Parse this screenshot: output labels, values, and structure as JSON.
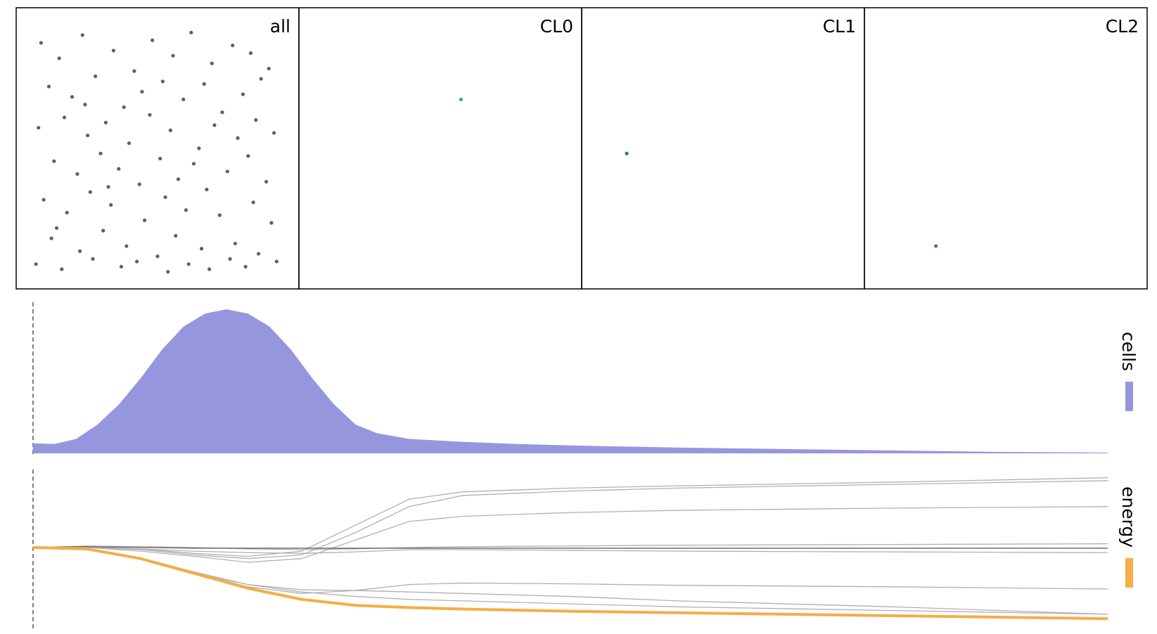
{
  "chart_data": [
    {
      "type": "scatter",
      "title": "all",
      "color": "#606060",
      "xlim": [
        0,
        1
      ],
      "ylim": [
        0,
        1
      ],
      "x": [
        0.05,
        0.12,
        0.21,
        0.33,
        0.41,
        0.48,
        0.56,
        0.63,
        0.71,
        0.79,
        0.86,
        0.93,
        0.08,
        0.17,
        0.26,
        0.37,
        0.44,
        0.52,
        0.6,
        0.68,
        0.75,
        0.83,
        0.9,
        0.04,
        0.14,
        0.23,
        0.3,
        0.39,
        0.47,
        0.55,
        0.66,
        0.72,
        0.81,
        0.88,
        0.95,
        0.1,
        0.19,
        0.28,
        0.35,
        0.43,
        0.51,
        0.58,
        0.64,
        0.77,
        0.85,
        0.92,
        0.06,
        0.15,
        0.24,
        0.32,
        0.45,
        0.53,
        0.61,
        0.69,
        0.74,
        0.87,
        0.94,
        0.09,
        0.2,
        0.29,
        0.38,
        0.5,
        0.57,
        0.67,
        0.8,
        0.89,
        0.03,
        0.13,
        0.25,
        0.36,
        0.42,
        0.54,
        0.62,
        0.7,
        0.78,
        0.84,
        0.96,
        0.11,
        0.22,
        0.31
      ],
      "y": [
        0.91,
        0.85,
        0.94,
        0.88,
        0.8,
        0.92,
        0.86,
        0.95,
        0.83,
        0.9,
        0.87,
        0.81,
        0.74,
        0.7,
        0.78,
        0.66,
        0.72,
        0.76,
        0.69,
        0.75,
        0.64,
        0.71,
        0.77,
        0.58,
        0.62,
        0.55,
        0.6,
        0.52,
        0.63,
        0.57,
        0.5,
        0.59,
        0.54,
        0.61,
        0.56,
        0.45,
        0.4,
        0.48,
        0.42,
        0.36,
        0.46,
        0.38,
        0.44,
        0.41,
        0.47,
        0.37,
        0.3,
        0.25,
        0.33,
        0.28,
        0.22,
        0.31,
        0.26,
        0.34,
        0.24,
        0.29,
        0.21,
        0.15,
        0.1,
        0.18,
        0.12,
        0.08,
        0.16,
        0.11,
        0.13,
        0.09,
        0.05,
        0.03,
        0.07,
        0.04,
        0.06,
        0.02,
        0.05,
        0.03,
        0.07,
        0.04,
        0.06,
        0.19,
        0.67,
        0.35
      ]
    },
    {
      "type": "scatter",
      "title": "CL0",
      "color": "#3aa88a",
      "xlim": [
        0,
        1
      ],
      "ylim": [
        0,
        1
      ],
      "x": [
        0.58
      ],
      "y": [
        0.69
      ]
    },
    {
      "type": "scatter",
      "title": "CL1",
      "color": "#2f6f9a",
      "xlim": [
        0,
        1
      ],
      "ylim": [
        0,
        1
      ],
      "x": [
        0.128
      ],
      "y": [
        0.48
      ]
    },
    {
      "type": "scatter",
      "title": "CL2",
      "color": "#7a55c0",
      "xlim": [
        0,
        1
      ],
      "ylim": [
        0,
        1
      ],
      "x": [
        0.23
      ],
      "y": [
        0.12
      ]
    },
    {
      "type": "area",
      "label": "cells",
      "color": "#9696df",
      "xlim": [
        0,
        100
      ],
      "ylim": [
        0,
        100
      ],
      "x": [
        0,
        2,
        4,
        6,
        8,
        10,
        12,
        14,
        16,
        18,
        20,
        22,
        24,
        26,
        28,
        30,
        32,
        35,
        40,
        45,
        50,
        60,
        70,
        80,
        90,
        100
      ],
      "values": [
        7,
        6.5,
        10,
        20,
        34,
        52,
        72,
        88,
        97,
        100,
        97,
        88,
        72,
        52,
        34,
        20,
        14,
        10,
        8,
        6.5,
        5.5,
        4,
        3,
        2,
        1,
        0.5
      ]
    },
    {
      "type": "line",
      "label": "energy",
      "xlim": [
        0,
        100
      ],
      "ylim": [
        -110,
        105
      ],
      "x": [
        0,
        5,
        10,
        15,
        20,
        25,
        30,
        35,
        40,
        50,
        60,
        80,
        100
      ],
      "series": [
        {
          "color": "#b0b0b0",
          "values": [
            0,
            0,
            -2,
            -8,
            -12,
            -5,
            30,
            65,
            75,
            80,
            83,
            88,
            94
          ]
        },
        {
          "color": "#b0b0b0",
          "values": [
            0,
            0,
            -3,
            -10,
            -15,
            -10,
            20,
            55,
            70,
            76,
            80,
            85,
            90
          ]
        },
        {
          "color": "#b0b0b0",
          "values": [
            0,
            0,
            -5,
            -12,
            -20,
            -15,
            10,
            35,
            42,
            47,
            50,
            53,
            55
          ]
        },
        {
          "color": "#b0b0b0",
          "values": [
            0,
            2,
            1,
            0,
            -2,
            -3,
            -2,
            0,
            1,
            2,
            3,
            4,
            5
          ]
        },
        {
          "color": "#606060",
          "values": [
            0,
            1,
            0,
            -1,
            -1,
            -1,
            -1,
            -1,
            -1,
            -1,
            -1,
            -1,
            -1
          ]
        },
        {
          "color": "#b0b0b0",
          "values": [
            0,
            0,
            -2,
            -5,
            -7,
            -8,
            -6,
            -3,
            -3,
            -4,
            -5,
            -6,
            -7
          ]
        },
        {
          "color": "#b0b0b0",
          "values": [
            0,
            -3,
            -15,
            -35,
            -50,
            -57,
            -58,
            -50,
            -48,
            -49,
            -51,
            -53,
            -56
          ]
        },
        {
          "color": "#b0b0b0",
          "values": [
            0,
            -2,
            -14,
            -33,
            -50,
            -60,
            -66,
            -70,
            -72,
            -76,
            -80,
            -85,
            -90
          ]
        },
        {
          "color": "#b0b0b0",
          "values": [
            0,
            -2,
            -15,
            -34,
            -53,
            -62,
            -58,
            -60,
            -62,
            -66,
            -72,
            -80,
            -90
          ]
        },
        {
          "color": "#f5ad45",
          "values": [
            0,
            -2,
            -15,
            -35,
            -55,
            -70,
            -78,
            -81,
            -83,
            -86,
            -88,
            -92,
            -96
          ]
        }
      ]
    }
  ]
}
